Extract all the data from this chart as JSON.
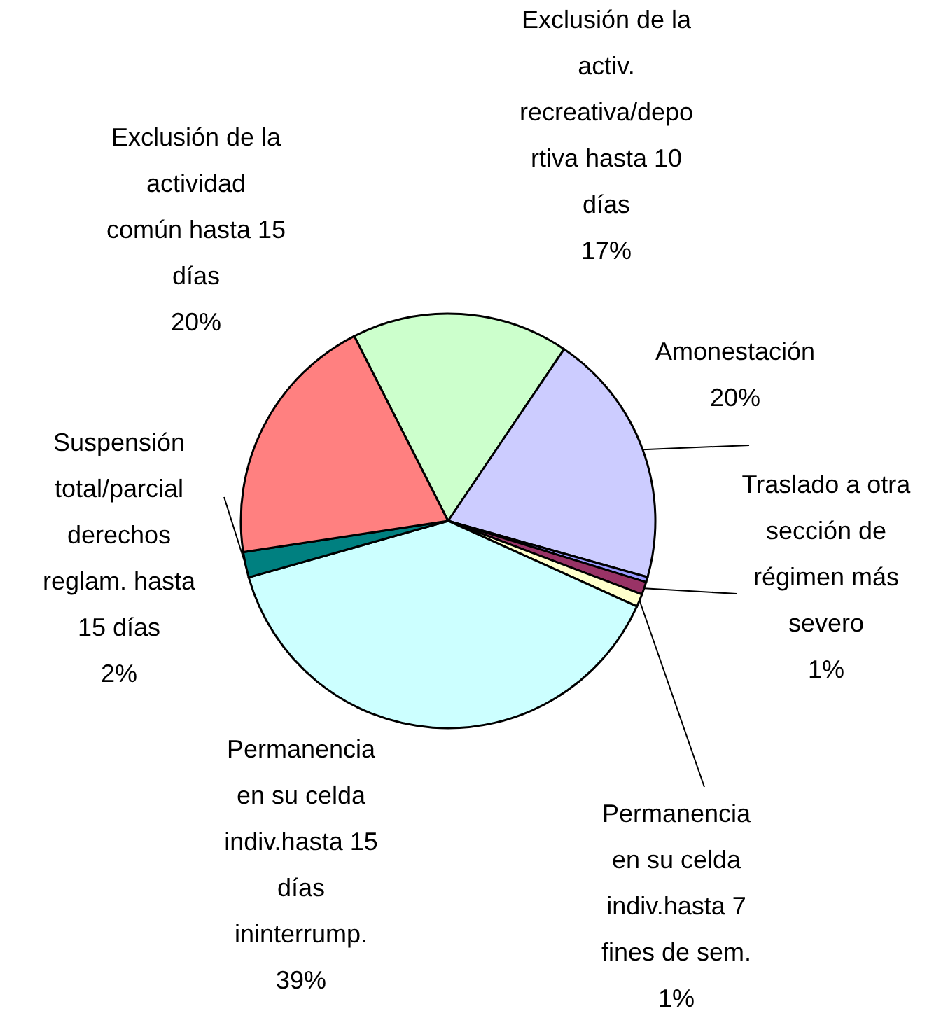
{
  "chart_data": {
    "type": "pie",
    "categories": [
      "Exclusión de la\nactiv.\nrecreativa/depo\nrtiva hasta 10\ndías",
      "Amonestación",
      null,
      "Traslado a otra\nsección de\nrégimen más\nsevero",
      "Permanencia\nen su celda\nindiv.hasta 7\nfines de sem.",
      "Permanencia\nen su celda\nindiv.hasta 15\ndías\nininterrump.",
      "Suspensión\ntotal/parcial\nderechos\nreglam. hasta\n15 días",
      "Exclusión de la\nactividad\ncomún hasta 15\ndías"
    ],
    "values": [
      17,
      20,
      0.4,
      1,
      1,
      39,
      2,
      20
    ],
    "value_labels": [
      "17%",
      "20%",
      null,
      "1%",
      "1%",
      "39%",
      "2%",
      "20%"
    ],
    "colors": [
      "#ccffcc",
      "#ccccff",
      "#9999ff",
      "#993366",
      "#ffffcc",
      "#ccffff",
      "#008080",
      "#ff8080"
    ]
  }
}
